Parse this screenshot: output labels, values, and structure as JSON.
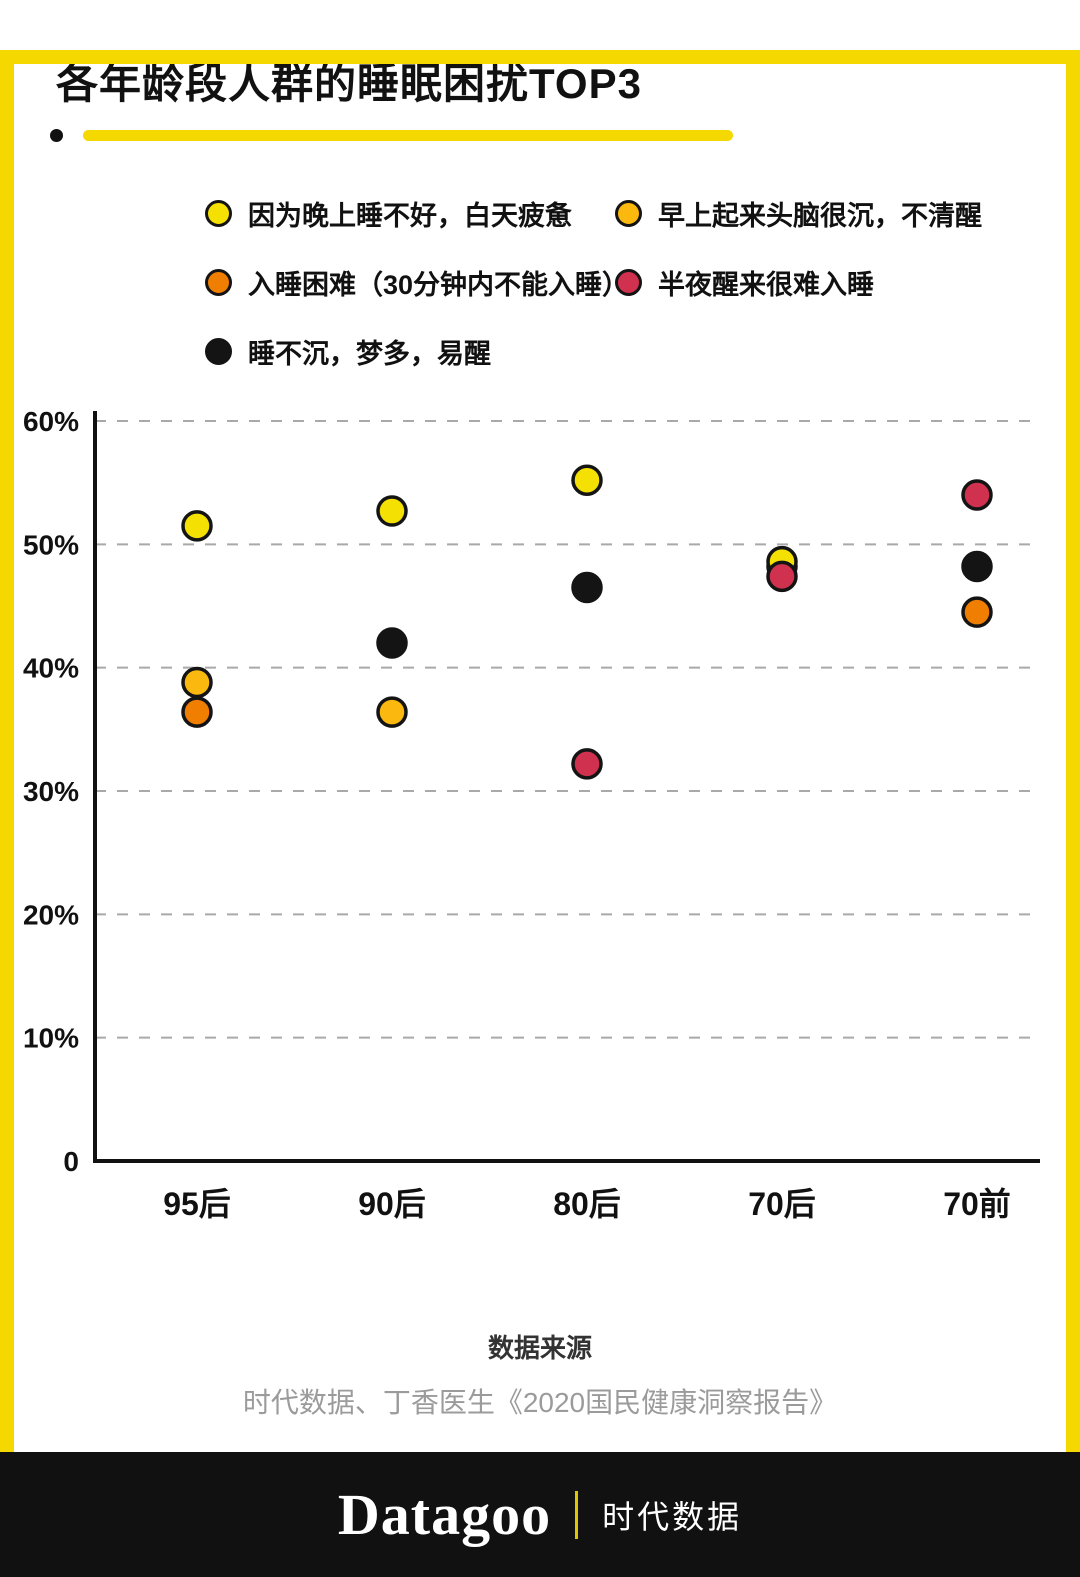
{
  "title": "各年龄段人群的睡眠困扰TOP3",
  "colors": {
    "frame_yellow": "#F5D800",
    "background": "#FFFFFF",
    "footer_bg": "#111111",
    "grid_gray": "#A9A9A9",
    "point_outline": "#141414"
  },
  "legend": {
    "items": [
      {
        "label": "因为晚上睡不好，白天疲惫",
        "color": "#F5E003"
      },
      {
        "label": "早上起来头脑很沉，不清醒",
        "color": "#FBB910"
      },
      {
        "label": "入睡困难（30分钟内不能入睡）",
        "color": "#F07E00"
      },
      {
        "label": "半夜醒来很难入睡",
        "color": "#D0314E"
      },
      {
        "label": "睡不沉，梦多，易醒",
        "color": "#141414"
      }
    ]
  },
  "chart_data": {
    "type": "scatter",
    "categories": [
      "95后",
      "90后",
      "80后",
      "70后",
      "70前"
    ],
    "series": [
      {
        "name": "睡不沉，梦多，易醒",
        "color": "#141414",
        "values": [
          null,
          42.0,
          46.5,
          48.2,
          48.2
        ]
      },
      {
        "name": "早上起来头脑很沉，不清醒",
        "color": "#FBB910",
        "values": [
          38.8,
          36.4,
          null,
          null,
          null
        ]
      },
      {
        "name": "入睡困难（30分钟内不能入睡）",
        "color": "#F07E00",
        "values": [
          36.4,
          null,
          null,
          null,
          44.5
        ]
      },
      {
        "name": "因为晚上睡不好，白天疲惫",
        "color": "#F5E003",
        "values": [
          51.5,
          52.7,
          55.2,
          48.6,
          null
        ]
      },
      {
        "name": "半夜醒来很难入睡",
        "color": "#D0314E",
        "values": [
          null,
          null,
          32.2,
          47.4,
          54.0
        ]
      }
    ],
    "ylim": [
      0,
      60
    ],
    "yticks": [
      "60%",
      "50%",
      "40%",
      "30%",
      "20%",
      "10%",
      "0"
    ],
    "ytick_values": [
      60,
      50,
      40,
      30,
      20,
      10,
      0
    ],
    "grid": "dashed horizontal",
    "legend_position": "top"
  },
  "source": {
    "heading": "数据来源",
    "text": "时代数据、丁香医生《2020国民健康洞察报告》"
  },
  "footer": {
    "logo": "Datagoo",
    "brand_cn": "时代数据"
  }
}
